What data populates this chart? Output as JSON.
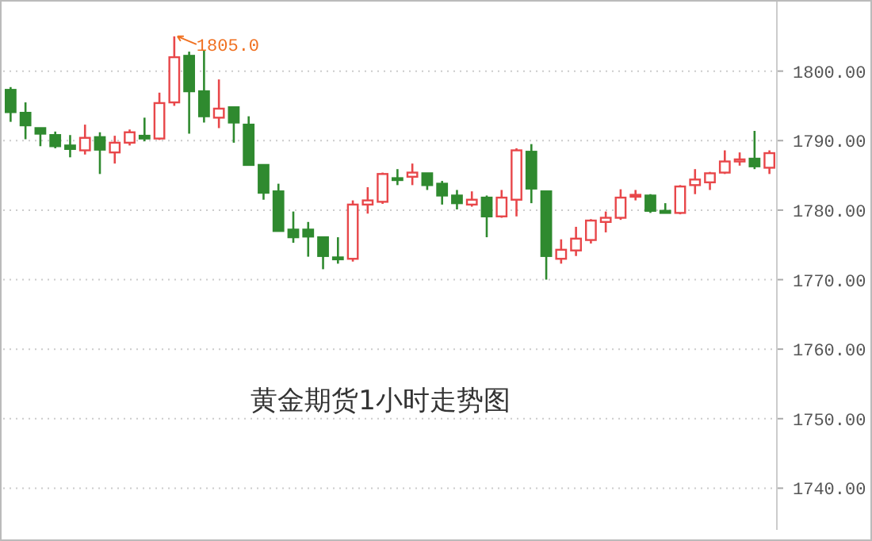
{
  "chart_data": {
    "type": "candlestick",
    "title": "黄金期货1小时走势图",
    "categories": [
      null,
      null,
      null,
      null,
      null,
      null,
      null,
      null,
      null,
      null,
      null,
      null,
      null,
      null,
      null,
      null,
      null,
      null,
      null,
      null,
      null,
      null,
      null,
      null,
      null,
      null,
      null,
      null,
      null,
      null,
      null,
      null,
      null,
      null,
      null,
      null,
      null,
      null,
      null,
      null,
      null,
      null,
      null,
      null,
      null,
      null,
      null,
      null,
      null,
      null,
      null,
      null
    ],
    "ohlc": [
      [
        1797.3,
        1797.7,
        1792.7,
        1794.1
      ],
      [
        1794.0,
        1795.5,
        1790.2,
        1792.2
      ],
      [
        1791.8,
        1791.8,
        1789.2,
        1791.0
      ],
      [
        1790.8,
        1791.3,
        1788.9,
        1789.2
      ],
      [
        1789.3,
        1790.8,
        1787.6,
        1788.8
      ],
      [
        1788.6,
        1792.3,
        1788.0,
        1790.4
      ],
      [
        1790.5,
        1791.2,
        1785.2,
        1788.7
      ],
      [
        1788.3,
        1790.7,
        1786.7,
        1789.7
      ],
      [
        1789.7,
        1791.6,
        1789.3,
        1791.2
      ],
      [
        1790.7,
        1793.3,
        1789.9,
        1790.3
      ],
      [
        1790.3,
        1796.9,
        1790.1,
        1795.4
      ],
      [
        1795.5,
        1805.0,
        1795.0,
        1802.0
      ],
      [
        1802.2,
        1802.8,
        1791.0,
        1797.1
      ],
      [
        1797.1,
        1803.0,
        1792.6,
        1793.5
      ],
      [
        1793.3,
        1798.8,
        1791.8,
        1794.6
      ],
      [
        1794.8,
        1794.8,
        1789.7,
        1792.6
      ],
      [
        1792.3,
        1793.5,
        1786.5,
        1786.5
      ],
      [
        1786.5,
        1786.5,
        1781.5,
        1782.5
      ],
      [
        1782.7,
        1783.8,
        1777.0,
        1777.0
      ],
      [
        1777.2,
        1779.8,
        1775.3,
        1776.1
      ],
      [
        1777.2,
        1778.3,
        1773.3,
        1776.2
      ],
      [
        1776.1,
        1776.1,
        1771.5,
        1773.4
      ],
      [
        1773.2,
        1776.1,
        1772.3,
        1773.0
      ],
      [
        1773.0,
        1781.4,
        1772.6,
        1780.8
      ],
      [
        1780.8,
        1783.3,
        1779.5,
        1781.4
      ],
      [
        1781.2,
        1785.4,
        1780.9,
        1785.2
      ],
      [
        1784.6,
        1785.9,
        1783.6,
        1784.5
      ],
      [
        1784.8,
        1786.7,
        1783.6,
        1785.4
      ],
      [
        1785.3,
        1785.3,
        1782.9,
        1783.6
      ],
      [
        1783.8,
        1784.2,
        1780.8,
        1782.1
      ],
      [
        1782.1,
        1782.9,
        1780.1,
        1781.0
      ],
      [
        1780.8,
        1782.7,
        1780.5,
        1781.5
      ],
      [
        1781.8,
        1782.1,
        1776.1,
        1779.1
      ],
      [
        1779.1,
        1782.9,
        1778.9,
        1781.8
      ],
      [
        1781.5,
        1788.9,
        1779.1,
        1788.6
      ],
      [
        1788.4,
        1789.5,
        1781.0,
        1783.1
      ],
      [
        1782.7,
        1782.7,
        1770.0,
        1773.4
      ],
      [
        1773.0,
        1775.8,
        1772.3,
        1774.3
      ],
      [
        1774.2,
        1777.6,
        1773.4,
        1775.9
      ],
      [
        1775.7,
        1778.7,
        1775.2,
        1778.5
      ],
      [
        1778.3,
        1779.8,
        1776.8,
        1778.9
      ],
      [
        1778.9,
        1783.0,
        1778.6,
        1781.8
      ],
      [
        1782.0,
        1782.9,
        1781.4,
        1782.2
      ],
      [
        1782.1,
        1782.3,
        1779.6,
        1779.9
      ],
      [
        1779.9,
        1781.0,
        1779.6,
        1779.6
      ],
      [
        1779.6,
        1783.6,
        1779.4,
        1783.4
      ],
      [
        1783.6,
        1785.9,
        1782.3,
        1784.4
      ],
      [
        1784.0,
        1785.5,
        1782.9,
        1785.3
      ],
      [
        1785.4,
        1788.6,
        1785.2,
        1787.0
      ],
      [
        1787.0,
        1788.3,
        1786.4,
        1787.3
      ],
      [
        1787.4,
        1791.4,
        1785.9,
        1786.3
      ],
      [
        1786.1,
        1788.6,
        1785.2,
        1788.2
      ]
    ],
    "colors": [
      "#2f8a2f",
      "#2f8a2f",
      "#2f8a2f",
      "#2f8a2f",
      "#2f8a2f",
      "#e8474a",
      "#2f8a2f",
      "#e8474a",
      "#e8474a",
      "#2f8a2f",
      "#e8474a",
      "#e8474a",
      "#2f8a2f",
      "#2f8a2f",
      "#e8474a",
      "#2f8a2f",
      "#2f8a2f",
      "#2f8a2f",
      "#2f8a2f",
      "#2f8a2f",
      "#2f8a2f",
      "#2f8a2f",
      "#2f8a2f",
      "#e8474a",
      "#e8474a",
      "#e8474a",
      "#2f8a2f",
      "#e8474a",
      "#2f8a2f",
      "#2f8a2f",
      "#2f8a2f",
      "#e8474a",
      "#2f8a2f",
      "#e8474a",
      "#e8474a",
      "#2f8a2f",
      "#2f8a2f",
      "#e8474a",
      "#e8474a",
      "#e8474a",
      "#e8474a",
      "#e8474a",
      "#e8474a",
      "#2f8a2f",
      "#2f8a2f",
      "#e8474a",
      "#e8474a",
      "#e8474a",
      "#e8474a",
      "#e8474a",
      "#2f8a2f",
      "#e8474a"
    ],
    "ylim": [
      1734,
      1810
    ],
    "yticks": [
      {
        "value": 1740,
        "label": "1740.00"
      },
      {
        "value": 1750,
        "label": "1750.00"
      },
      {
        "value": 1760,
        "label": "1760.00"
      },
      {
        "value": 1770,
        "label": "1770.00"
      },
      {
        "value": 1780,
        "label": "1780.00"
      },
      {
        "value": 1790,
        "label": "1790.00"
      },
      {
        "value": 1800,
        "label": "1800.00"
      }
    ],
    "grid": "y",
    "tick_labels": "y",
    "annotations": [
      "1805.0"
    ]
  }
}
